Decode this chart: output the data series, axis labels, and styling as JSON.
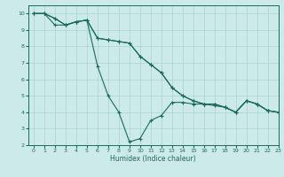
{
  "xlabel": "Humidex (Indice chaleur)",
  "xlim": [
    -0.5,
    23
  ],
  "ylim": [
    2,
    10.5
  ],
  "yticks": [
    2,
    3,
    4,
    5,
    6,
    7,
    8,
    9,
    10
  ],
  "xticks": [
    0,
    1,
    2,
    3,
    4,
    5,
    6,
    7,
    8,
    9,
    10,
    11,
    12,
    13,
    14,
    15,
    16,
    17,
    18,
    19,
    20,
    21,
    22,
    23
  ],
  "bg_color": "#cceae7",
  "grid_color": "#aad4d0",
  "line_color": "#1a6b5a",
  "line1_x": [
    0,
    1,
    2,
    3,
    4,
    5,
    6,
    7,
    8,
    9,
    10,
    11,
    12,
    13,
    14,
    15,
    16,
    17,
    18,
    19,
    20,
    21,
    22,
    23
  ],
  "line1_y": [
    10.0,
    10.0,
    9.3,
    9.3,
    9.5,
    9.6,
    8.5,
    8.4,
    8.3,
    8.2,
    7.4,
    6.9,
    6.4,
    5.5,
    5.0,
    4.7,
    4.5,
    4.5,
    4.3,
    4.0,
    4.7,
    4.5,
    4.1,
    4.0
  ],
  "line2_x": [
    0,
    1,
    2,
    3,
    4,
    5,
    6,
    7,
    8,
    9,
    10,
    11,
    12,
    13,
    14,
    15,
    16,
    17,
    18,
    19,
    20,
    21,
    22,
    23
  ],
  "line2_y": [
    10.0,
    10.0,
    9.7,
    9.3,
    9.5,
    9.6,
    6.8,
    5.0,
    4.0,
    2.2,
    2.4,
    3.5,
    3.8,
    4.6,
    4.6,
    4.5,
    4.5,
    4.4,
    4.3,
    4.0,
    4.7,
    4.5,
    4.1,
    4.0
  ],
  "line3_x": [
    0,
    1,
    2,
    3,
    4,
    5,
    6,
    7,
    8,
    9,
    10,
    11,
    12,
    13,
    14,
    15,
    16,
    17,
    18,
    19,
    20,
    21,
    22,
    23
  ],
  "line3_y": [
    10.0,
    10.0,
    9.7,
    9.3,
    9.5,
    9.6,
    8.5,
    8.4,
    8.3,
    8.2,
    7.4,
    6.9,
    6.4,
    5.5,
    5.0,
    4.7,
    4.5,
    4.5,
    4.3,
    4.0,
    4.7,
    4.5,
    4.1,
    4.0
  ]
}
